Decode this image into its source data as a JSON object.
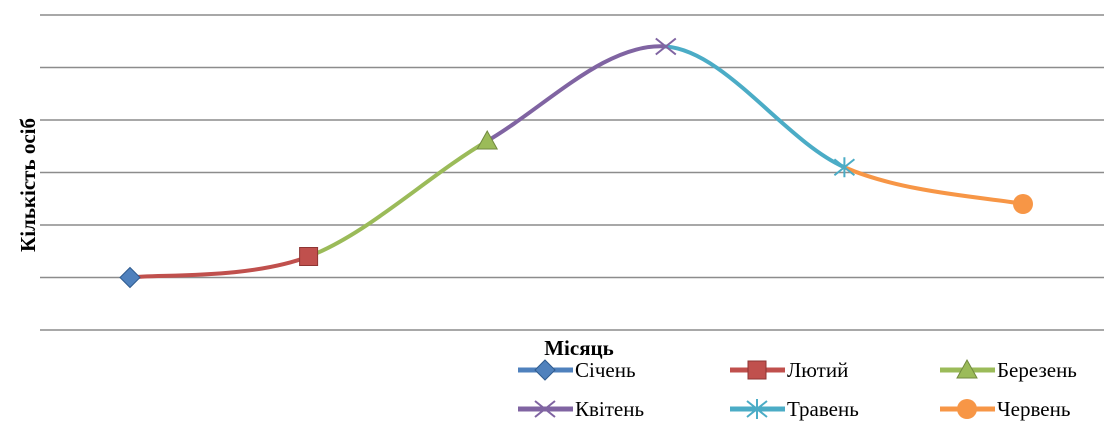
{
  "chart_data": {
    "type": "line",
    "smooth": true,
    "title": "",
    "xlabel": "Місяць",
    "ylabel": "Кількість осіб",
    "ylim": [
      0,
      6
    ],
    "gridlines": 7,
    "grid": true,
    "legend_position": "bottom-right",
    "points": [
      {
        "name": "Січень",
        "x": 1,
        "y": 1.0,
        "color": "#4f81bd",
        "marker": "diamond"
      },
      {
        "name": "Лютий",
        "x": 2,
        "y": 1.4,
        "color": "#c0504d",
        "marker": "square"
      },
      {
        "name": "Березень",
        "x": 3,
        "y": 3.6,
        "color": "#9bbb59",
        "marker": "triangle"
      },
      {
        "name": "Квітень",
        "x": 4,
        "y": 5.4,
        "color": "#8064a2",
        "marker": "x"
      },
      {
        "name": "Травень",
        "x": 5,
        "y": 3.1,
        "color": "#4bacc6",
        "marker": "star"
      },
      {
        "name": "Червень",
        "x": 6,
        "y": 2.4,
        "color": "#f79646",
        "marker": "circle"
      }
    ]
  }
}
